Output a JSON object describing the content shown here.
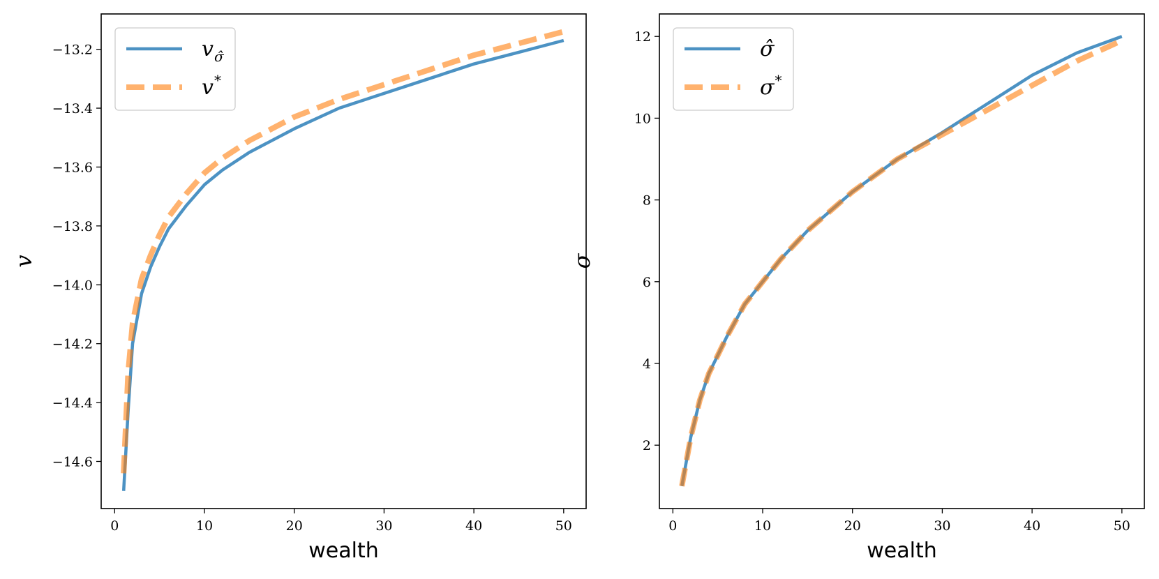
{
  "chart_data": [
    {
      "type": "line",
      "title": "",
      "xlabel": "wealth",
      "ylabel": "v",
      "xlim": [
        -1.5,
        52.5
      ],
      "ylim": [
        -14.76,
        -13.08
      ],
      "xticks": [
        0,
        10,
        20,
        30,
        40,
        50
      ],
      "xtick_labels": [
        "0",
        "10",
        "20",
        "30",
        "40",
        "50"
      ],
      "yticks": [
        -14.6,
        -14.4,
        -14.2,
        -14.0,
        -13.8,
        -13.6,
        -13.4,
        -13.2
      ],
      "ytick_labels": [
        "−14.6",
        "−14.4",
        "−14.2",
        "−14.0",
        "−13.8",
        "−13.6",
        "−13.4",
        "−13.2"
      ],
      "grid": false,
      "legend_position": "top-left",
      "x": [
        1,
        1.5,
        2,
        3,
        4,
        5,
        6,
        8,
        10,
        12,
        15,
        20,
        25,
        30,
        35,
        40,
        45,
        50
      ],
      "series": [
        {
          "name": "v_{σ̂}",
          "label_main": "v",
          "label_sub": "σ̂",
          "label_sup": "",
          "color": "#1f77b4",
          "style": "solid",
          "values": [
            -14.7,
            -14.43,
            -14.2,
            -14.03,
            -13.94,
            -13.87,
            -13.81,
            -13.73,
            -13.66,
            -13.61,
            -13.55,
            -13.47,
            -13.4,
            -13.35,
            -13.3,
            -13.25,
            -13.21,
            -13.17
          ]
        },
        {
          "name": "v*",
          "label_main": "v",
          "label_sub": "",
          "label_sup": "*",
          "color": "#ff7f0e",
          "style": "dashed",
          "values": [
            -14.64,
            -14.3,
            -14.13,
            -13.98,
            -13.9,
            -13.83,
            -13.77,
            -13.69,
            -13.62,
            -13.57,
            -13.51,
            -13.43,
            -13.37,
            -13.32,
            -13.27,
            -13.22,
            -13.18,
            -13.14
          ]
        }
      ]
    },
    {
      "type": "line",
      "title": "",
      "xlabel": "wealth",
      "ylabel": "σ",
      "xlim": [
        -1.5,
        52.5
      ],
      "ylim": [
        0.45,
        12.55
      ],
      "xticks": [
        0,
        10,
        20,
        30,
        40,
        50
      ],
      "xtick_labels": [
        "0",
        "10",
        "20",
        "30",
        "40",
        "50"
      ],
      "yticks": [
        2,
        4,
        6,
        8,
        10,
        12
      ],
      "ytick_labels": [
        "2",
        "4",
        "6",
        "8",
        "10",
        "12"
      ],
      "grid": false,
      "legend_position": "top-left",
      "x": [
        1,
        2,
        3,
        4,
        5,
        6,
        8,
        10,
        12,
        15,
        20,
        25,
        30,
        35,
        40,
        45,
        50
      ],
      "series": [
        {
          "name": "σ̂",
          "label_main": "σ̂",
          "label_sub": "",
          "label_sup": "",
          "color": "#1f77b4",
          "style": "solid",
          "values": [
            1.0,
            2.2,
            3.1,
            3.75,
            4.2,
            4.65,
            5.45,
            6.0,
            6.55,
            7.25,
            8.2,
            9.0,
            9.65,
            10.35,
            11.05,
            11.6,
            12.0
          ]
        },
        {
          "name": "σ*",
          "label_main": "σ",
          "label_sub": "",
          "label_sup": "*",
          "color": "#ff7f0e",
          "style": "dashed",
          "values": [
            1.0,
            2.2,
            3.1,
            3.75,
            4.2,
            4.65,
            5.45,
            6.0,
            6.55,
            7.25,
            8.2,
            9.0,
            9.6,
            10.2,
            10.8,
            11.4,
            11.9
          ]
        }
      ]
    }
  ]
}
